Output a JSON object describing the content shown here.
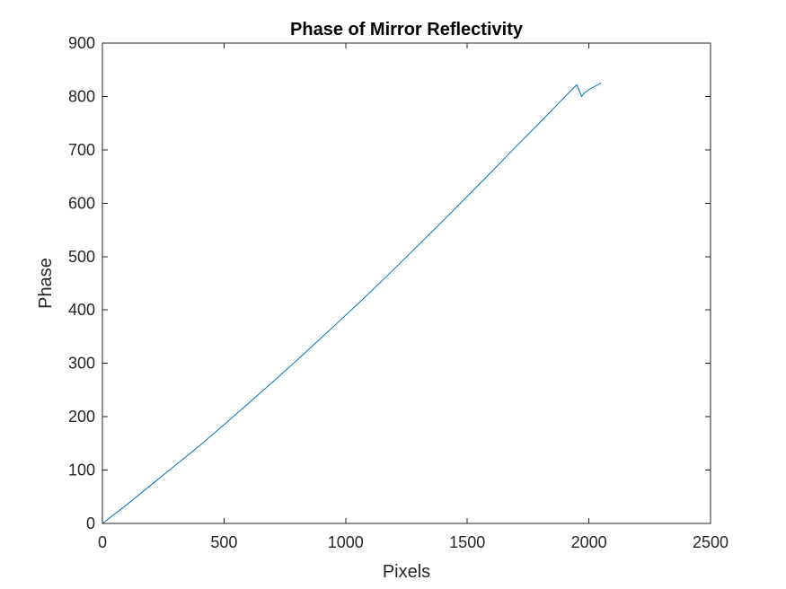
{
  "chart_data": {
    "type": "line",
    "title": "Phase of Mirror Reflectivity",
    "xlabel": "Pixels",
    "ylabel": "Phase",
    "xlim": [
      0,
      2500
    ],
    "ylim": [
      0,
      900
    ],
    "xticks": [
      0,
      500,
      1000,
      1500,
      2000,
      2500
    ],
    "yticks": [
      0,
      100,
      200,
      300,
      400,
      500,
      600,
      700,
      800,
      900
    ],
    "grid": false,
    "legend": "none",
    "series": [
      {
        "color": "#0072BD",
        "x": [
          0,
          100,
          200,
          300,
          400,
          500,
          600,
          700,
          800,
          900,
          1000,
          1100,
          1200,
          1300,
          1400,
          1500,
          1600,
          1700,
          1800,
          1900,
          1950,
          1970,
          1975,
          1980,
          2000,
          2050
        ],
        "y": [
          0,
          35,
          72,
          109,
          146,
          185,
          225,
          265,
          306,
          348,
          390,
          433,
          477,
          522,
          567,
          613,
          659,
          706,
          752,
          799,
          822,
          800,
          803,
          806,
          813,
          825
        ]
      }
    ]
  }
}
